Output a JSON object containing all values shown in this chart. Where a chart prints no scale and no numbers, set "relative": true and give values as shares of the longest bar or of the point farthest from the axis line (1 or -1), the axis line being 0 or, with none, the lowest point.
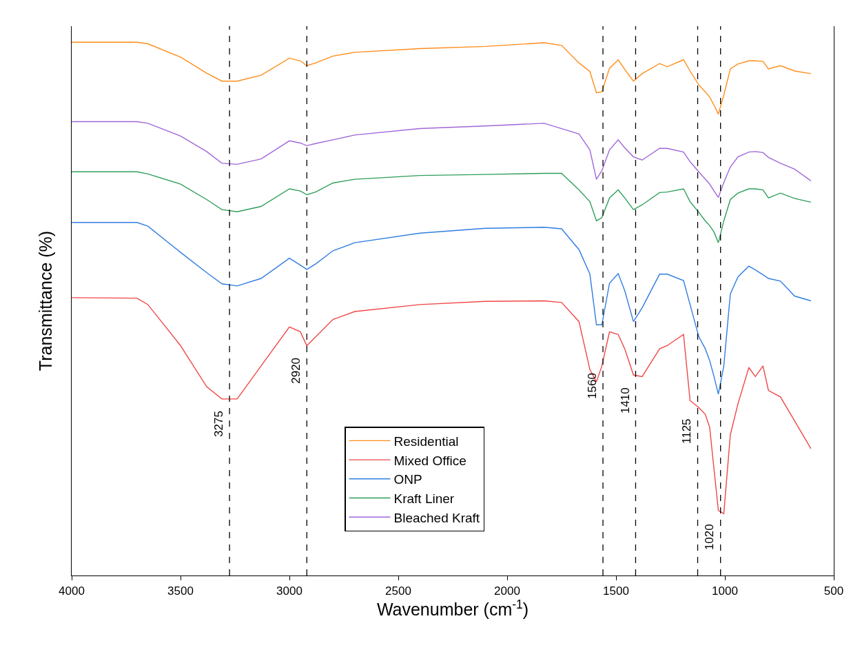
{
  "chart_data": {
    "type": "line",
    "relative": true,
    "xlabel": "Wavenumber (cm$^{-1}$)",
    "ylabel": "Transmittance (%)",
    "xlim": [
      4000,
      500
    ],
    "xticks": [
      4000,
      3500,
      3000,
      2500,
      2000,
      1500,
      1000,
      500
    ],
    "legend": "bottom",
    "marker": "none",
    "line_style": "solid",
    "x": [
      4000,
      3700,
      3650,
      3500,
      3380,
      3310,
      3240,
      3130,
      3000,
      2950,
      2920,
      2880,
      2800,
      2700,
      2400,
      2100,
      1830,
      1750,
      1670,
      1620,
      1590,
      1565,
      1530,
      1490,
      1460,
      1420,
      1380,
      1300,
      1265,
      1190,
      1160,
      1120,
      1090,
      1070,
      1050,
      1030,
      1005,
      975,
      940,
      890,
      860,
      825,
      800,
      745,
      680,
      605
    ],
    "series": [
      {
        "name": "Residential",
        "color": "#ff8c1a",
        "values": [
          1.0,
          1.0,
          0.997,
          0.972,
          0.942,
          0.927,
          0.927,
          0.938,
          0.97,
          0.965,
          0.956,
          0.961,
          0.974,
          0.981,
          0.988,
          0.992,
          0.999,
          0.994,
          0.961,
          0.945,
          0.905,
          0.907,
          0.951,
          0.967,
          0.949,
          0.927,
          0.941,
          0.96,
          0.954,
          0.967,
          0.946,
          0.92,
          0.907,
          0.897,
          0.882,
          0.865,
          0.901,
          0.95,
          0.959,
          0.965,
          0.965,
          0.964,
          0.95,
          0.956,
          0.946,
          0.941
        ]
      },
      {
        "name": "Mixed Office",
        "color": "#f04646",
        "values": [
          0.521,
          0.52,
          0.508,
          0.431,
          0.354,
          0.331,
          0.331,
          0.393,
          0.466,
          0.457,
          0.431,
          0.447,
          0.48,
          0.495,
          0.508,
          0.514,
          0.515,
          0.512,
          0.476,
          0.386,
          0.363,
          0.393,
          0.457,
          0.452,
          0.425,
          0.376,
          0.373,
          0.425,
          0.431,
          0.452,
          0.328,
          0.315,
          0.302,
          0.278,
          0.199,
          0.122,
          0.116,
          0.264,
          0.322,
          0.39,
          0.373,
          0.393,
          0.347,
          0.335,
          0.29,
          0.238
        ]
      },
      {
        "name": "ONP",
        "color": "#2f7de1",
        "values": [
          0.662,
          0.662,
          0.655,
          0.606,
          0.568,
          0.547,
          0.543,
          0.557,
          0.595,
          0.582,
          0.574,
          0.584,
          0.609,
          0.624,
          0.642,
          0.651,
          0.653,
          0.65,
          0.611,
          0.565,
          0.47,
          0.47,
          0.548,
          0.566,
          0.534,
          0.476,
          0.502,
          0.565,
          0.565,
          0.553,
          0.508,
          0.448,
          0.425,
          0.403,
          0.373,
          0.34,
          0.393,
          0.528,
          0.56,
          0.58,
          0.573,
          0.564,
          0.557,
          0.552,
          0.524,
          0.515
        ]
      },
      {
        "name": "Kraft Liner",
        "color": "#2e9e5b",
        "values": [
          0.757,
          0.757,
          0.753,
          0.734,
          0.705,
          0.686,
          0.682,
          0.692,
          0.725,
          0.721,
          0.714,
          0.719,
          0.736,
          0.743,
          0.75,
          0.752,
          0.754,
          0.754,
          0.723,
          0.701,
          0.665,
          0.671,
          0.708,
          0.723,
          0.708,
          0.686,
          0.695,
          0.718,
          0.719,
          0.725,
          0.701,
          0.681,
          0.665,
          0.656,
          0.644,
          0.624,
          0.665,
          0.705,
          0.717,
          0.725,
          0.725,
          0.723,
          0.708,
          0.717,
          0.707,
          0.7
        ]
      },
      {
        "name": "Bleached Kraft",
        "color": "#a066d8",
        "values": [
          0.851,
          0.851,
          0.848,
          0.824,
          0.795,
          0.773,
          0.771,
          0.781,
          0.815,
          0.811,
          0.806,
          0.81,
          0.817,
          0.826,
          0.838,
          0.843,
          0.848,
          0.838,
          0.828,
          0.798,
          0.743,
          0.759,
          0.798,
          0.817,
          0.802,
          0.785,
          0.779,
          0.801,
          0.801,
          0.794,
          0.776,
          0.757,
          0.743,
          0.734,
          0.721,
          0.709,
          0.737,
          0.766,
          0.785,
          0.794,
          0.795,
          0.793,
          0.784,
          0.773,
          0.762,
          0.74
        ]
      }
    ],
    "ref_lines": [
      {
        "axis": "x",
        "value": 3275,
        "label": "3275",
        "color": "#000000",
        "line_style": "dashed"
      },
      {
        "axis": "x",
        "value": 2920,
        "label": "2920",
        "color": "#000000",
        "line_style": "dashed"
      },
      {
        "axis": "x",
        "value": 1560,
        "label": "1560",
        "color": "#000000",
        "line_style": "dashed"
      },
      {
        "axis": "x",
        "value": 1410,
        "label": "1410",
        "color": "#000000",
        "line_style": "dashed"
      },
      {
        "axis": "x",
        "value": 1125,
        "label": "1125",
        "color": "#000000",
        "line_style": "dashed"
      },
      {
        "axis": "x",
        "value": 1020,
        "label": "1020",
        "color": "#000000",
        "line_style": "dashed"
      }
    ]
  }
}
